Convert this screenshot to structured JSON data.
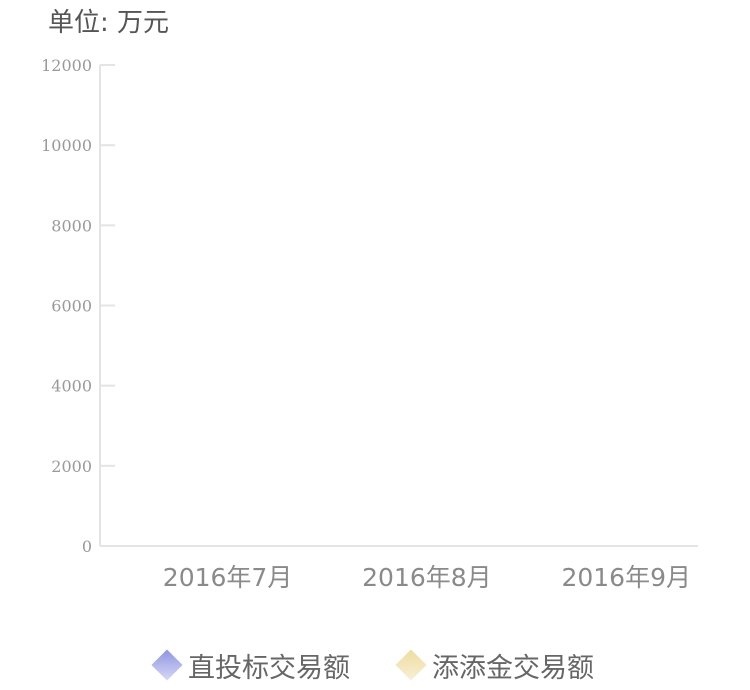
{
  "unit_label": "单位: 万元",
  "chart_data": {
    "type": "bar",
    "categories": [
      "2016年7月",
      "2016年8月",
      "2016年9月"
    ],
    "series": [
      {
        "name": "直投标交易额",
        "values": [
          0,
          0,
          0
        ],
        "color": "#8f95e0"
      },
      {
        "name": "添添金交易额",
        "values": [
          0,
          0,
          0
        ],
        "color": "#eedca0"
      }
    ],
    "y_ticks": [
      "0",
      "2000",
      "4000",
      "6000",
      "8000",
      "10000",
      "12000"
    ],
    "ylim": [
      0,
      12000
    ],
    "grid": false,
    "legend_position": "bottom"
  },
  "legend": [
    {
      "label": "直投标交易额",
      "icon": "diamond-icon",
      "color": "#8f95e0",
      "color_light": "#d6d8f6"
    },
    {
      "label": "添添金交易额",
      "icon": "diamond-icon",
      "color": "#eedca0",
      "color_light": "#f8f0d6"
    }
  ]
}
